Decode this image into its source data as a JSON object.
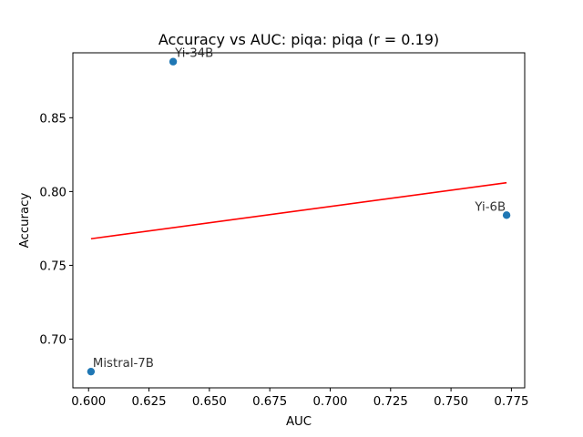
{
  "chart_data": {
    "type": "scatter",
    "title": "Accuracy vs AUC: piqa: piqa (r = 0.19)",
    "xlabel": "AUC",
    "ylabel": "Accuracy",
    "xlim": [
      0.5935,
      0.7805
    ],
    "ylim": [
      0.667,
      0.894
    ],
    "xticks": [
      0.6,
      0.625,
      0.65,
      0.675,
      0.7,
      0.725,
      0.75,
      0.775
    ],
    "xtick_labels": [
      "0.600",
      "0.625",
      "0.650",
      "0.675",
      "0.700",
      "0.725",
      "0.750",
      "0.775"
    ],
    "yticks": [
      0.7,
      0.75,
      0.8,
      0.85
    ],
    "ytick_labels": [
      "0.70",
      "0.75",
      "0.80",
      "0.85"
    ],
    "points": [
      {
        "label": "Yi-34B",
        "x": 0.635,
        "y": 0.888
      },
      {
        "label": "Yi-6B",
        "x": 0.773,
        "y": 0.784
      },
      {
        "label": "Mistral-7B",
        "x": 0.601,
        "y": 0.678
      }
    ],
    "trendline": {
      "x": [
        0.601,
        0.773
      ],
      "y": [
        0.768,
        0.806
      ]
    },
    "grid": false,
    "colors": {
      "points": "#1f77b4",
      "trendline": "#ff0000",
      "point_label": "#333333"
    }
  }
}
